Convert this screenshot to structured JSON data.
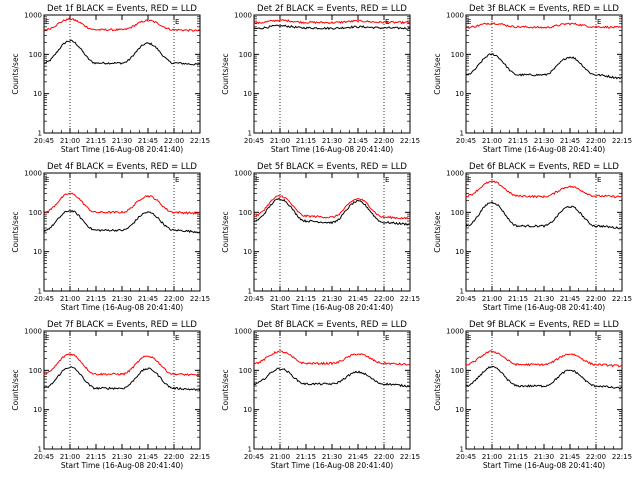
{
  "chart_data": [
    {
      "type": "line",
      "title": "Det 1f BLACK = Events, RED = LLD",
      "xlabel": "Start Time (16-Aug-08 20:41:40)",
      "ylabel": "Counts/sec",
      "yscale": "log",
      "ylim": [
        1,
        1000
      ],
      "xticks": [
        "20:45",
        "21:00",
        "21:15",
        "21:30",
        "21:45",
        "22:00",
        "22:15"
      ],
      "yticks": [
        "1",
        "10",
        "100",
        "1000"
      ],
      "dotted_vlines": [
        "21:00",
        "22:00"
      ],
      "markers": [
        {
          "at": "20:45",
          "text": "E"
        },
        {
          "at": "22:00",
          "text": "E"
        }
      ],
      "series": [
        {
          "color": "#000000",
          "points": [
            [
              "20:45",
              60
            ],
            [
              "21:00",
              220
            ],
            [
              "21:15",
              60
            ],
            [
              "21:30",
              60
            ],
            [
              "21:45",
              190
            ],
            [
              "22:00",
              60
            ],
            [
              "22:15",
              55
            ]
          ]
        },
        {
          "color": "#ff0000",
          "points": [
            [
              "20:45",
              420
            ],
            [
              "21:00",
              780
            ],
            [
              "21:15",
              420
            ],
            [
              "21:30",
              420
            ],
            [
              "21:45",
              720
            ],
            [
              "22:00",
              420
            ],
            [
              "22:15",
              400
            ]
          ]
        }
      ]
    },
    {
      "type": "line",
      "title": "Det 2f BLACK = Events, RED = LLD",
      "xlabel": "Start Time (16-Aug-08 20:41:40)",
      "ylabel": "Counts/sec",
      "yscale": "log",
      "ylim": [
        1,
        1000
      ],
      "xticks": [
        "20:45",
        "21:00",
        "21:15",
        "21:30",
        "21:45",
        "22:00",
        "22:15"
      ],
      "yticks": [
        "1",
        "10",
        "100",
        "1000"
      ],
      "dotted_vlines": [
        "21:00",
        "22:00"
      ],
      "markers": [
        {
          "at": "22:00",
          "text": "E"
        }
      ],
      "series": [
        {
          "color": "#000000",
          "points": [
            [
              "20:45",
              450
            ],
            [
              "21:00",
              530
            ],
            [
              "21:15",
              470
            ],
            [
              "21:30",
              460
            ],
            [
              "21:45",
              500
            ],
            [
              "22:00",
              470
            ],
            [
              "22:15",
              460
            ]
          ]
        },
        {
          "color": "#ff0000",
          "points": [
            [
              "20:45",
              620
            ],
            [
              "21:00",
              730
            ],
            [
              "21:15",
              650
            ],
            [
              "21:30",
              640
            ],
            [
              "21:45",
              700
            ],
            [
              "22:00",
              650
            ],
            [
              "22:15",
              640
            ]
          ]
        }
      ]
    },
    {
      "type": "line",
      "title": "Det 3f BLACK = Events, RED = LLD",
      "xlabel": "Start Time (16-Aug-08 20:41:40)",
      "ylabel": "Counts/sec",
      "yscale": "log",
      "ylim": [
        1,
        1000
      ],
      "xticks": [
        "20:45",
        "21:00",
        "21:15",
        "21:30",
        "21:45",
        "22:00",
        "22:15"
      ],
      "yticks": [
        "1",
        "10",
        "100",
        "1000"
      ],
      "dotted_vlines": [
        "21:00",
        "22:00"
      ],
      "markers": [
        {
          "at": "20:45",
          "text": "E"
        },
        {
          "at": "22:00",
          "text": "E"
        }
      ],
      "series": [
        {
          "color": "#000000",
          "points": [
            [
              "20:45",
              30
            ],
            [
              "21:00",
              100
            ],
            [
              "21:15",
              30
            ],
            [
              "21:30",
              30
            ],
            [
              "21:45",
              85
            ],
            [
              "22:00",
              30
            ],
            [
              "22:15",
              25
            ]
          ]
        },
        {
          "color": "#ff0000",
          "points": [
            [
              "20:45",
              480
            ],
            [
              "21:00",
              620
            ],
            [
              "21:15",
              500
            ],
            [
              "21:30",
              480
            ],
            [
              "21:45",
              600
            ],
            [
              "22:00",
              500
            ],
            [
              "22:15",
              480
            ]
          ]
        }
      ]
    },
    {
      "type": "line",
      "title": "Det 4f BLACK = Events, RED = LLD",
      "xlabel": "Start Time (16-Aug-08 20:41:40)",
      "ylabel": "Counts/sec",
      "yscale": "log",
      "ylim": [
        1,
        1000
      ],
      "xticks": [
        "20:45",
        "21:00",
        "21:15",
        "21:30",
        "21:45",
        "22:00",
        "22:15"
      ],
      "yticks": [
        "1",
        "10",
        "100",
        "1000"
      ],
      "dotted_vlines": [
        "21:00",
        "22:00"
      ],
      "markers": [
        {
          "at": "20:45",
          "text": "E"
        },
        {
          "at": "22:00",
          "text": "E"
        }
      ],
      "series": [
        {
          "color": "#000000",
          "points": [
            [
              "20:45",
              35
            ],
            [
              "21:00",
              110
            ],
            [
              "21:15",
              35
            ],
            [
              "21:30",
              35
            ],
            [
              "21:45",
              100
            ],
            [
              "22:00",
              35
            ],
            [
              "22:15",
              32
            ]
          ]
        },
        {
          "color": "#ff0000",
          "points": [
            [
              "20:45",
              100
            ],
            [
              "21:00",
              300
            ],
            [
              "21:15",
              100
            ],
            [
              "21:30",
              100
            ],
            [
              "21:45",
              260
            ],
            [
              "22:00",
              100
            ],
            [
              "22:15",
              95
            ]
          ]
        }
      ]
    },
    {
      "type": "line",
      "title": "Det 5f BLACK = Events, RED = LLD",
      "xlabel": "Start Time (16-Aug-08 20:41:40)",
      "ylabel": "Counts/sec",
      "yscale": "log",
      "ylim": [
        1,
        1000
      ],
      "xticks": [
        "20:45",
        "21:00",
        "21:15",
        "21:30",
        "21:45",
        "22:00",
        "22:15"
      ],
      "yticks": [
        "1",
        "10",
        "100",
        "1000"
      ],
      "dotted_vlines": [
        "21:00",
        "22:00"
      ],
      "markers": [
        {
          "at": "20:45",
          "text": "E"
        },
        {
          "at": "22:00",
          "text": "E"
        }
      ],
      "series": [
        {
          "color": "#000000",
          "points": [
            [
              "20:45",
              60
            ],
            [
              "21:00",
              220
            ],
            [
              "21:15",
              60
            ],
            [
              "21:30",
              55
            ],
            [
              "21:45",
              190
            ],
            [
              "22:00",
              55
            ],
            [
              "22:15",
              50
            ]
          ]
        },
        {
          "color": "#ff0000",
          "points": [
            [
              "20:45",
              80
            ],
            [
              "21:00",
              260
            ],
            [
              "21:15",
              80
            ],
            [
              "21:30",
              75
            ],
            [
              "21:45",
              220
            ],
            [
              "22:00",
              75
            ],
            [
              "22:15",
              70
            ]
          ]
        }
      ]
    },
    {
      "type": "line",
      "title": "Det 6f BLACK = Events, RED = LLD",
      "xlabel": "Start Time (16-Aug-08 20:41:40)",
      "ylabel": "Counts/sec",
      "yscale": "log",
      "ylim": [
        1,
        1000
      ],
      "xticks": [
        "20:45",
        "21:00",
        "21:15",
        "21:30",
        "21:45",
        "22:00",
        "22:15"
      ],
      "yticks": [
        "1",
        "10",
        "100",
        "1000"
      ],
      "dotted_vlines": [
        "21:00",
        "22:00"
      ],
      "markers": [
        {
          "at": "20:45",
          "text": "E"
        },
        {
          "at": "22:00",
          "text": "E"
        }
      ],
      "series": [
        {
          "color": "#000000",
          "points": [
            [
              "20:45",
              45
            ],
            [
              "21:00",
              180
            ],
            [
              "21:15",
              45
            ],
            [
              "21:30",
              45
            ],
            [
              "21:45",
              140
            ],
            [
              "22:00",
              45
            ],
            [
              "22:15",
              40
            ]
          ]
        },
        {
          "color": "#ff0000",
          "points": [
            [
              "20:45",
              260
            ],
            [
              "21:00",
              600
            ],
            [
              "21:15",
              260
            ],
            [
              "21:30",
              250
            ],
            [
              "21:45",
              450
            ],
            [
              "22:00",
              260
            ],
            [
              "22:15",
              250
            ]
          ]
        }
      ]
    },
    {
      "type": "line",
      "title": "Det 7f BLACK = Events, RED = LLD",
      "xlabel": "Start Time (16-Aug-08 20:41:40)",
      "ylabel": "Counts/sec",
      "yscale": "log",
      "ylim": [
        1,
        1000
      ],
      "xticks": [
        "20:45",
        "21:00",
        "21:15",
        "21:30",
        "21:45",
        "22:00",
        "22:15"
      ],
      "yticks": [
        "1",
        "10",
        "100",
        "1000"
      ],
      "dotted_vlines": [
        "21:00",
        "22:00"
      ],
      "markers": [
        {
          "at": "20:45",
          "text": "E"
        },
        {
          "at": "22:00",
          "text": "E"
        }
      ],
      "series": [
        {
          "color": "#000000",
          "points": [
            [
              "20:45",
              35
            ],
            [
              "21:00",
              120
            ],
            [
              "21:15",
              35
            ],
            [
              "21:30",
              35
            ],
            [
              "21:45",
              110
            ],
            [
              "22:00",
              35
            ],
            [
              "22:15",
              32
            ]
          ]
        },
        {
          "color": "#ff0000",
          "points": [
            [
              "20:45",
              80
            ],
            [
              "21:00",
              260
            ],
            [
              "21:15",
              80
            ],
            [
              "21:30",
              80
            ],
            [
              "21:45",
              230
            ],
            [
              "22:00",
              80
            ],
            [
              "22:15",
              75
            ]
          ]
        }
      ]
    },
    {
      "type": "line",
      "title": "Det 8f BLACK = Events, RED = LLD",
      "xlabel": "Start Time (16-Aug-08 20:41:40)",
      "ylabel": "Counts/sec",
      "yscale": "log",
      "ylim": [
        1,
        1000
      ],
      "xticks": [
        "20:45",
        "21:00",
        "21:15",
        "21:30",
        "21:45",
        "22:00",
        "22:15"
      ],
      "yticks": [
        "1",
        "10",
        "100",
        "1000"
      ],
      "dotted_vlines": [
        "21:00",
        "22:00"
      ],
      "markers": [
        {
          "at": "20:45",
          "text": "E"
        },
        {
          "at": "22:00",
          "text": "E"
        }
      ],
      "series": [
        {
          "color": "#000000",
          "points": [
            [
              "20:45",
              45
            ],
            [
              "21:00",
              110
            ],
            [
              "21:15",
              45
            ],
            [
              "21:30",
              45
            ],
            [
              "21:45",
              90
            ],
            [
              "22:00",
              45
            ],
            [
              "22:15",
              40
            ]
          ]
        },
        {
          "color": "#ff0000",
          "points": [
            [
              "20:45",
              150
            ],
            [
              "21:00",
              300
            ],
            [
              "21:15",
              150
            ],
            [
              "21:30",
              150
            ],
            [
              "21:45",
              260
            ],
            [
              "22:00",
              150
            ],
            [
              "22:15",
              140
            ]
          ]
        }
      ]
    },
    {
      "type": "line",
      "title": "Det 9f BLACK = Events, RED = LLD",
      "xlabel": "Start Time (16-Aug-08 20:41:40)",
      "ylabel": "Counts/sec",
      "yscale": "log",
      "ylim": [
        1,
        1000
      ],
      "xticks": [
        "20:45",
        "21:00",
        "21:15",
        "21:30",
        "21:45",
        "22:00",
        "22:15"
      ],
      "yticks": [
        "1",
        "10",
        "100",
        "1000"
      ],
      "dotted_vlines": [
        "21:00",
        "22:00"
      ],
      "markers": [
        {
          "at": "20:45",
          "text": "E"
        },
        {
          "at": "22:00",
          "text": "E"
        }
      ],
      "series": [
        {
          "color": "#000000",
          "points": [
            [
              "20:45",
              40
            ],
            [
              "21:00",
              120
            ],
            [
              "21:15",
              40
            ],
            [
              "21:30",
              40
            ],
            [
              "21:45",
              100
            ],
            [
              "22:00",
              40
            ],
            [
              "22:15",
              35
            ]
          ]
        },
        {
          "color": "#ff0000",
          "points": [
            [
              "20:45",
              140
            ],
            [
              "21:00",
              300
            ],
            [
              "21:15",
              140
            ],
            [
              "21:30",
              140
            ],
            [
              "21:45",
              260
            ],
            [
              "22:00",
              140
            ],
            [
              "22:15",
              130
            ]
          ]
        }
      ]
    }
  ]
}
